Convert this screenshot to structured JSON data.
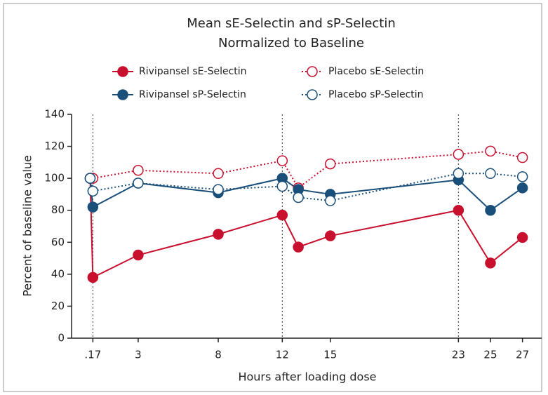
{
  "chart_data": {
    "type": "line",
    "title_lines": [
      "Mean sE-Selectin and sP-Selectin",
      "Normalized to Baseline"
    ],
    "x_label": "Hours after loading dose",
    "y_label": "Percent of baseline value",
    "x": [
      0,
      0.17,
      3,
      8,
      12,
      13,
      15,
      23,
      25,
      27
    ],
    "series": [
      {
        "name": "Rivipansel sE-Selectin",
        "color": "#c8102e",
        "line_style": "solid",
        "marker": "filled",
        "values": [
          100,
          38,
          52,
          65,
          77,
          57,
          64,
          80,
          47,
          63
        ]
      },
      {
        "name": "Placebo sE-Selectin",
        "color": "#c8102e",
        "line_style": "dotted",
        "marker": "hollow",
        "values": [
          100,
          100,
          105,
          103,
          111,
          94,
          109,
          115,
          117,
          113
        ]
      },
      {
        "name": "Rivipansel sP-Selectin",
        "color": "#1a4f7a",
        "line_style": "solid",
        "marker": "filled",
        "values": [
          100,
          82,
          97,
          91,
          100,
          93,
          90,
          99,
          80,
          94
        ]
      },
      {
        "name": "Placebo sP-Selectin",
        "color": "#1a4f7a",
        "line_style": "dotted",
        "marker": "hollow",
        "values": [
          100,
          92,
          97,
          93,
          95,
          88,
          86,
          103,
          103,
          101
        ]
      }
    ],
    "reference_lines_x": [
      0.17,
      12,
      23
    ],
    "xlim": [
      -1.16,
      28.2
    ],
    "xticks": [
      {
        "value": 0.17,
        "label": ".17"
      },
      3,
      8,
      12,
      15,
      23,
      25,
      27
    ],
    "ylim": [
      0,
      140
    ],
    "yticks": [
      0,
      20,
      40,
      60,
      80,
      100,
      120,
      140
    ]
  }
}
